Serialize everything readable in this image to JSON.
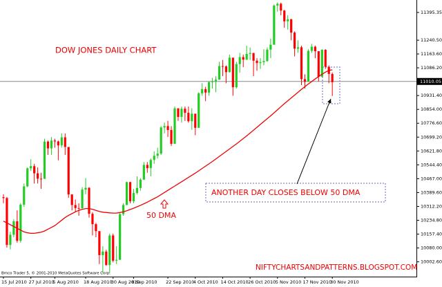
{
  "chart_data": {
    "type": "candlestick",
    "title": "DOW JONES DAILY CHART",
    "annotations": [
      "ANOTHER DAY CLOSES BELOW 50 DMA",
      "NIFTYCHARTSANDPATTERNS.BLOGSPOT.COM"
    ],
    "copyright": "Bmco Trader 5, © 2001-2010 MetaQuotes Software Corp.",
    "current_price": 11010.05,
    "up_color": "#22cc22",
    "down_color": "#ff0000",
    "categories": [
      "15 Jul 2010",
      null,
      null,
      null,
      null,
      null,
      null,
      null,
      "27 Jul 2010",
      null,
      null,
      null,
      null,
      null,
      null,
      "5 Aug 2010",
      null,
      null,
      null,
      null,
      null,
      null,
      null,
      null,
      "18 Aug 2010",
      null,
      null,
      null,
      null,
      null,
      null,
      null,
      "30 Aug 2010",
      null,
      null,
      null,
      null,
      null,
      "8 Sep 2010",
      null,
      null,
      null,
      null,
      null,
      null,
      null,
      null,
      null,
      "22 Sep 2010",
      null,
      null,
      null,
      null,
      null,
      null,
      null,
      "4 Oct 2010",
      null,
      null,
      null,
      null,
      null,
      null,
      null,
      "14 Oct 2010",
      null,
      null,
      null,
      null,
      null,
      null,
      null,
      "26 Oct 2010",
      null,
      null,
      null,
      null,
      null,
      null,
      null,
      "5 Nov 2010",
      null,
      null,
      null,
      null,
      null,
      null,
      null,
      "17 Nov 2010",
      null,
      null,
      null,
      null,
      null,
      null,
      null,
      "30 Nov 2010"
    ],
    "open": [
      10364,
      10359,
      10097,
      10154,
      10229,
      10120,
      10322,
      10424,
      10525,
      10537,
      10497,
      10467,
      10466,
      10674,
      10636,
      10680,
      10675,
      10653,
      10698,
      10644,
      10379,
      10320,
      10303,
      10302,
      10406,
      10416,
      10271,
      10213,
      10174,
      10040,
      10060,
      9985,
      10150,
      10009,
      10014,
      10269,
      10320,
      10448,
      10341,
      10387,
      10415,
      10462,
      10544,
      10526,
      10572,
      10595,
      10607,
      10753,
      10761,
      10739,
      10662,
      10860,
      10812,
      10858,
      10835,
      10788,
      10830,
      10751,
      10944,
      10967,
      10948,
      11006,
      11010,
      11020,
      11096,
      11094,
      11062,
      11143,
      10978,
      11107,
      11146,
      11132,
      11164,
      11169,
      11126,
      11113,
      11118,
      11124,
      11188,
      11215,
      11434,
      11444,
      11406,
      11346,
      11357,
      11283,
      11193,
      11201,
      11023,
      11008,
      11181,
      11204,
      11179,
      11036,
      11187,
      11092,
      11052
    ],
    "high": [
      10380,
      10365,
      10170,
      10240,
      10290,
      10330,
      10440,
      10530,
      10576,
      10550,
      10530,
      10500,
      10690,
      10680,
      10700,
      10690,
      10680,
      10720,
      10720,
      10644,
      10380,
      10350,
      10330,
      10420,
      10470,
      10420,
      10280,
      10220,
      10175,
      10090,
      10070,
      10160,
      10160,
      10090,
      10280,
      10330,
      10450,
      10450,
      10410,
      10480,
      10470,
      10560,
      10560,
      10580,
      10620,
      10640,
      10760,
      10780,
      10790,
      10760,
      10870,
      10860,
      10870,
      10870,
      10870,
      10860,
      10830,
      10950,
      11000,
      10980,
      11010,
      11030,
      11040,
      11120,
      11130,
      11100,
      11160,
      11143,
      11120,
      11170,
      11160,
      11210,
      11200,
      11170,
      11140,
      11140,
      11190,
      11200,
      11250,
      11440,
      11452,
      11450,
      11410,
      11380,
      11360,
      11290,
      11240,
      11210,
      11050,
      11190,
      11220,
      11210,
      11180,
      11190,
      11190,
      11100,
      11060
    ],
    "low": [
      10330,
      10082,
      10072,
      10140,
      10110,
      10110,
      10310,
      10420,
      10510,
      10440,
      10440,
      10410,
      10466,
      10600,
      10600,
      10640,
      10570,
      10640,
      10600,
      10360,
      10290,
      10280,
      10260,
      10300,
      10380,
      10250,
      10150,
      10140,
      9990,
      9940,
      9980,
      9940,
      10000,
      9990,
      10014,
      10260,
      10320,
      10330,
      10330,
      10380,
      10400,
      10460,
      10500,
      10480,
      10550,
      10580,
      10600,
      10720,
      10700,
      10650,
      10660,
      10790,
      10780,
      10790,
      10780,
      10740,
      10710,
      10750,
      10930,
      10900,
      10930,
      10970,
      10950,
      11020,
      11040,
      11000,
      11060,
      10930,
      10970,
      11060,
      11090,
      11130,
      11130,
      11040,
      11070,
      11080,
      11100,
      11120,
      11140,
      11215,
      11400,
      11380,
      11310,
      11300,
      11240,
      11150,
      11170,
      10990,
      10970,
      11008,
      11170,
      11140,
      11010,
      11036,
      11080,
      11000,
      10929
    ],
    "close": [
      10359,
      10097,
      10154,
      10229,
      10120,
      10322,
      10424,
      10525,
      10537,
      10497,
      10467,
      10466,
      10674,
      10636,
      10680,
      10675,
      10653,
      10698,
      10644,
      10379,
      10320,
      10303,
      10302,
      10406,
      10416,
      10271,
      10213,
      10174,
      10040,
      10060,
      9985,
      10150,
      10009,
      10014,
      10269,
      10320,
      10448,
      10341,
      10387,
      10415,
      10462,
      10544,
      10526,
      10572,
      10595,
      10607,
      10753,
      10761,
      10739,
      10662,
      10860,
      10812,
      10858,
      10835,
      10788,
      10830,
      10751,
      10944,
      10967,
      10948,
      11006,
      11010,
      11020,
      11096,
      11094,
      11062,
      11143,
      10978,
      11107,
      11146,
      11132,
      11164,
      11169,
      11126,
      11113,
      11118,
      11124,
      11188,
      11215,
      11434,
      11444,
      11406,
      11346,
      11357,
      11283,
      11193,
      11201,
      11023,
      11008,
      11181,
      11204,
      11179,
      11036,
      11187,
      11092,
      11052,
      11006
    ],
    "series": [
      {
        "name": "50 DMA",
        "color": "#ee0000",
        "values": [
          10230,
          10220,
          10210,
          10200,
          10190,
          10180,
          10170,
          10165,
          10162,
          10162,
          10165,
          10168,
          10175,
          10185,
          10195,
          10205,
          10220,
          10235,
          10250,
          10262,
          10272,
          10282,
          10290,
          10296,
          10300,
          10300,
          10296,
          10290,
          10284,
          10280,
          10278,
          10276,
          10275,
          10275,
          10278,
          10282,
          10288,
          10295,
          10302,
          10310,
          10318,
          10327,
          10336,
          10346,
          10356,
          10366,
          10378,
          10390,
          10402,
          10414,
          10426,
          10438,
          10450,
          10462,
          10474,
          10486,
          10498,
          10511,
          10524,
          10537,
          10550,
          10563,
          10577,
          10591,
          10605,
          10619,
          10633,
          10647,
          10661,
          10676,
          10691,
          10706,
          10722,
          10738,
          10754,
          10770,
          10786,
          10802,
          10818,
          10835,
          10852,
          10869,
          10886,
          10902,
          10918,
          10934,
          10950,
          10966,
          10981,
          10996,
          11010,
          11024,
          11038,
          11050,
          11062,
          11072,
          11075
        ]
      }
    ],
    "ylim": [
      9920,
      11465
    ],
    "yticks": [
      11395.35,
      {
        "value": 11240.5,
        "label": "11240.50"
      },
      {
        "value": 11163.6,
        "label": "11163.60"
      },
      {
        "value": 11086.2,
        "label": "11086.20"
      },
      {
        "value": 10931.4,
        "label": "10931.40"
      },
      {
        "value": 10854,
        "label": "10854.00"
      },
      {
        "value": 10776.6,
        "label": "10776.60"
      },
      {
        "value": 10699.2,
        "label": "10699.20"
      },
      {
        "value": 10621.8,
        "label": "10621.80"
      },
      {
        "value": 10544.4,
        "label": "10544.40"
      },
      {
        "value": 10467,
        "label": "10467.00"
      },
      {
        "value": 10389.6,
        "label": "10389.60"
      },
      {
        "value": 10312.2,
        "label": "10312.20"
      },
      {
        "value": 10234.8,
        "label": "10234.80"
      },
      {
        "value": 10157.4,
        "label": "10157.40"
      },
      {
        "value": 10080,
        "label": "10080.00"
      },
      {
        "value": 10002.6,
        "label": "10002.60"
      }
    ]
  }
}
